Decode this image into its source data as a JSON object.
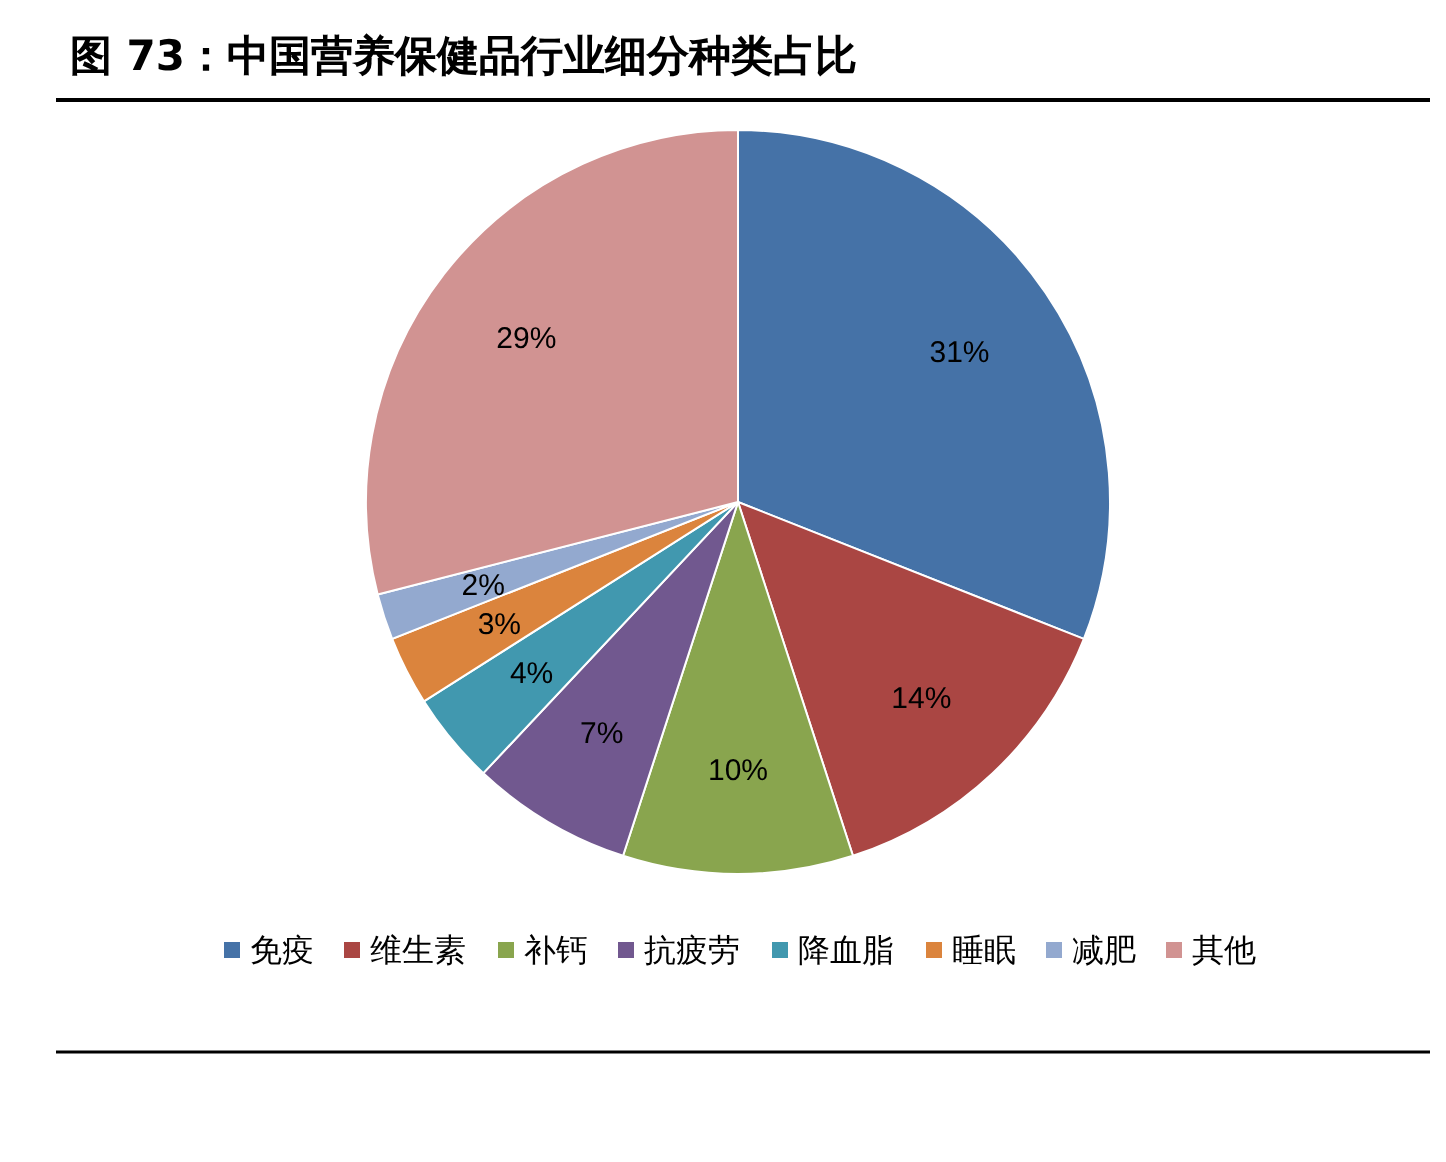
{
  "chart_data": {
    "type": "pie",
    "title": "图 73：中国营养保健品行业细分种类占比",
    "categories": [
      "免疫",
      "维生素",
      "补钙",
      "抗疲劳",
      "降血脂",
      "睡眠",
      "减肥",
      "其他"
    ],
    "values": [
      31,
      14,
      10,
      7,
      4,
      3,
      2,
      29
    ],
    "value_labels": [
      "31%",
      "14%",
      "10%",
      "7%",
      "4%",
      "3%",
      "2%",
      "29%"
    ],
    "colors": [
      "#4572a7",
      "#aa4643",
      "#89a54e",
      "#71588f",
      "#4198af",
      "#db843d",
      "#93a9cf",
      "#d19392"
    ],
    "legend": "bottom"
  }
}
